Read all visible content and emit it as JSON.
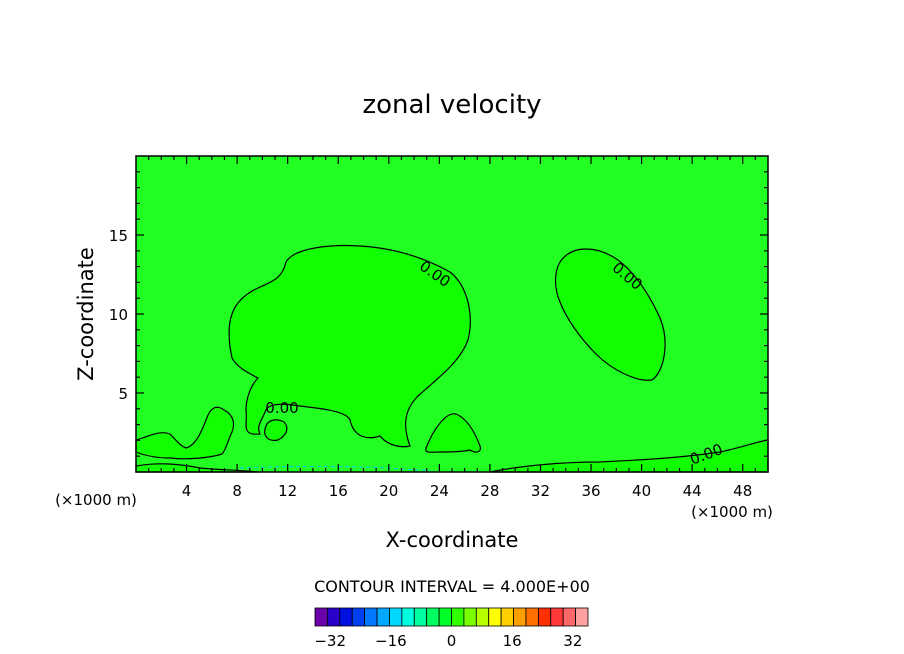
{
  "chart_data": {
    "type": "contour",
    "title": "zonal velocity",
    "xlabel": "X-coordinate",
    "ylabel": "Z-coordinate",
    "x_unit": "(×1000 m)",
    "x_unit_right": "(×1000 m)",
    "xlim": [
      0,
      50
    ],
    "ylim": [
      0,
      20
    ],
    "x_ticks": [
      4,
      8,
      12,
      16,
      20,
      24,
      28,
      32,
      36,
      40,
      44,
      48
    ],
    "y_ticks": [
      5,
      10,
      15
    ],
    "contour_interval_text": "CONTOUR INTERVAL = 4.000E+00",
    "contour_labels": [
      "0.00",
      "0.00",
      "0.00",
      "0.00"
    ],
    "colorbar": {
      "min": -36,
      "max": 36,
      "step": 4,
      "tick_values": [
        -32,
        -16,
        0,
        16,
        32
      ],
      "tick_labels": [
        "−32",
        "−16",
        "0",
        "16",
        "32"
      ],
      "colors": [
        "#6a00a8",
        "#2a00c8",
        "#0010e0",
        "#0040f0",
        "#0078ff",
        "#00a8ff",
        "#00d8ff",
        "#00ffe0",
        "#00ffa0",
        "#00ff60",
        "#00ff28",
        "#30ff00",
        "#78ff00",
        "#b8ff00",
        "#ffff00",
        "#ffd000",
        "#ffa000",
        "#ff7000",
        "#ff3000",
        "#ff3838",
        "#ff6868",
        "#ffa0a0"
      ]
    },
    "background_color": "#22ff22",
    "positive_region_color": "#11ff00"
  }
}
